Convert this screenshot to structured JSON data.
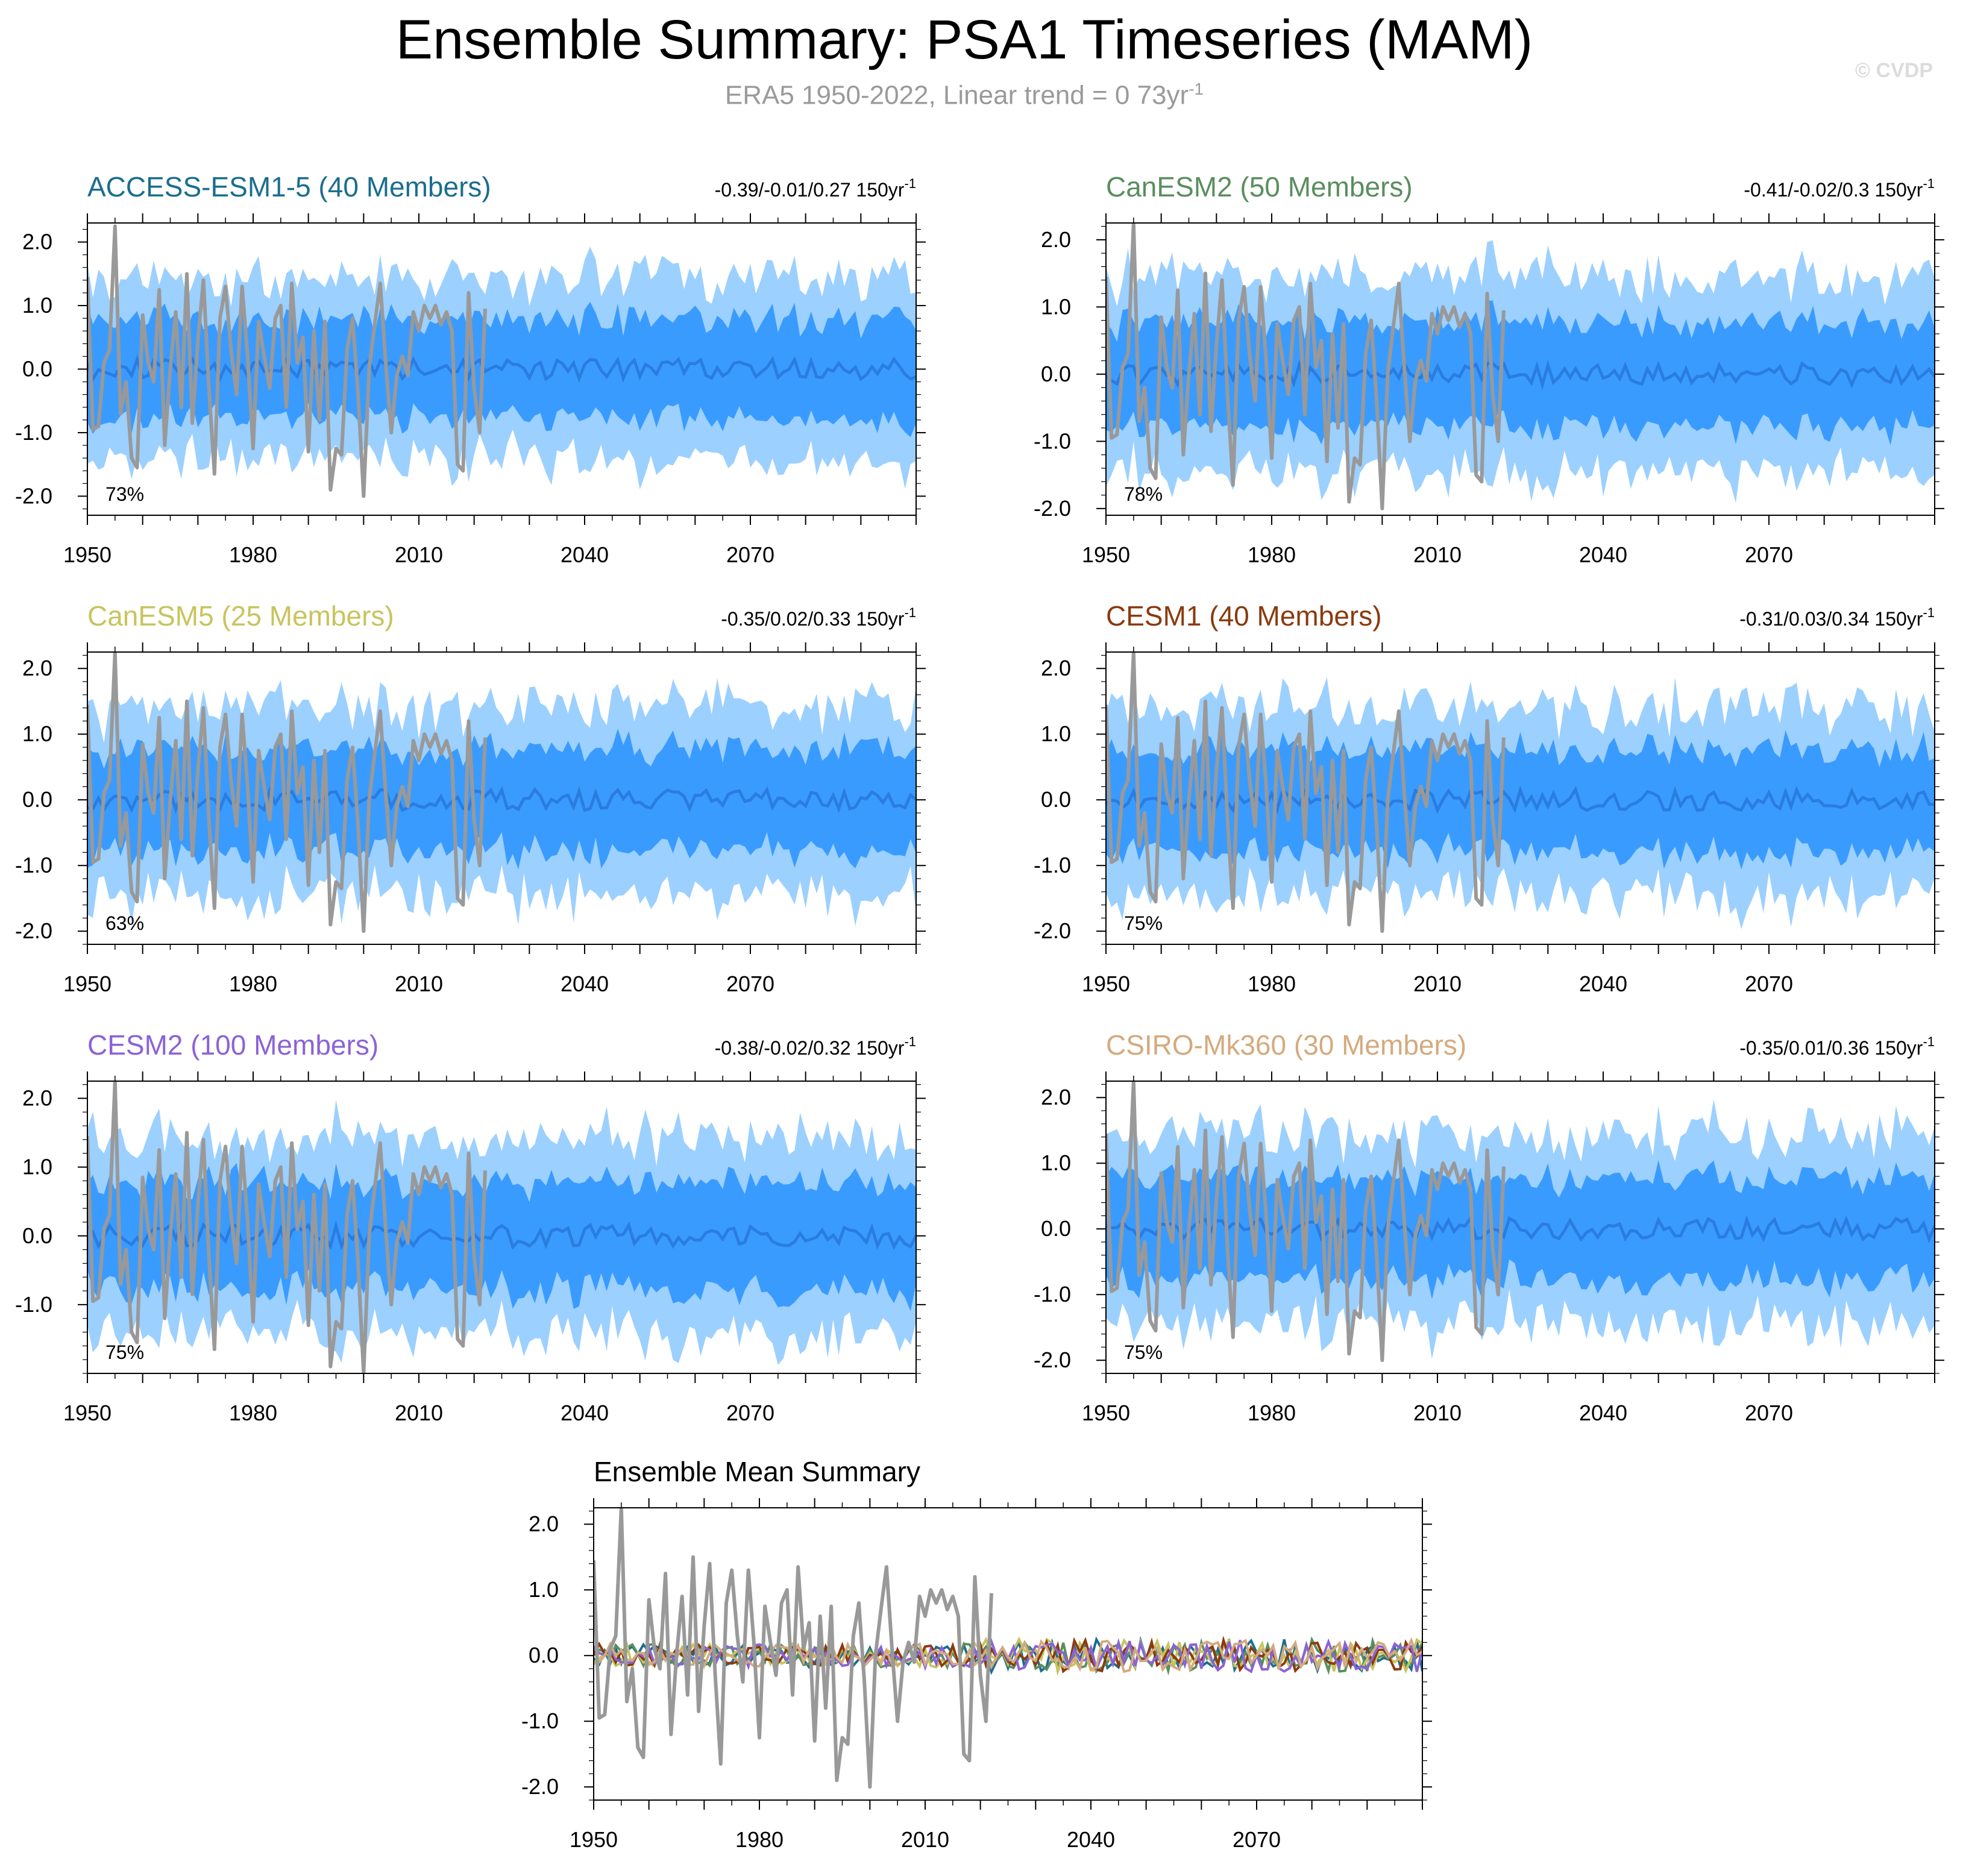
{
  "header": {
    "title": "Ensemble Summary: PSA1 Timeseries (MAM)",
    "subtitle_text": "ERA5 1950-2022, Linear trend = 0 73yr",
    "subtitle_sup": "-1",
    "watermark": "© CVDP"
  },
  "colors": {
    "outer_band": "#9cd0ff",
    "inner_band": "#3a9bff",
    "ensemble_mean": "#2a7de0",
    "observations": "#999999"
  },
  "chart_data": [
    {
      "type": "area",
      "title": "ACCESS-ESM1-5 (40 Members)",
      "title_color": "#1a6e8e",
      "trend": "-0.39/-0.01/0.27 150yr",
      "trend_sup": "-1",
      "pct": "73%",
      "xlim": [
        1950,
        2100
      ],
      "ylim": [
        -2.3,
        2.3
      ],
      "yticks": [
        "2.0",
        "1.0",
        "0.0",
        "-1.0",
        "-2.0"
      ],
      "xticks": [
        "1950",
        "1980",
        "2010",
        "2040",
        "2070"
      ],
      "seed": 11
    },
    {
      "type": "area",
      "title": "CanESM2 (50 Members)",
      "title_color": "#5a8e5e",
      "trend": "-0.41/-0.02/0.3 150yr",
      "trend_sup": "-1",
      "pct": "78%",
      "xlim": [
        1950,
        2100
      ],
      "ylim": [
        -2.1,
        2.25
      ],
      "yticks": [
        "2.0",
        "1.0",
        "0.0",
        "-1.0",
        "-2.0"
      ],
      "xticks": [
        "1950",
        "1980",
        "2010",
        "2040",
        "2070"
      ],
      "seed": 23
    },
    {
      "type": "area",
      "title": "CanESM5 (25 Members)",
      "title_color": "#c8c45e",
      "trend": "-0.35/0.02/0.33 150yr",
      "trend_sup": "-1",
      "pct": "63%",
      "xlim": [
        1950,
        2100
      ],
      "ylim": [
        -2.2,
        2.25
      ],
      "yticks": [
        "2.0",
        "1.0",
        "0.0",
        "-1.0",
        "-2.0"
      ],
      "xticks": [
        "1950",
        "1980",
        "2010",
        "2040",
        "2070"
      ],
      "seed": 37
    },
    {
      "type": "area",
      "title": "CESM1 (40 Members)",
      "title_color": "#8b3a0e",
      "trend": "-0.31/0.03/0.34 150yr",
      "trend_sup": "-1",
      "pct": "75%",
      "xlim": [
        1950,
        2100
      ],
      "ylim": [
        -2.2,
        2.25
      ],
      "yticks": [
        "2.0",
        "1.0",
        "0.0",
        "-1.0",
        "-2.0"
      ],
      "xticks": [
        "1950",
        "1980",
        "2010",
        "2040",
        "2070"
      ],
      "seed": 41
    },
    {
      "type": "area",
      "title": "CESM2 (100 Members)",
      "title_color": "#8b62d8",
      "trend": "-0.38/-0.02/0.32 150yr",
      "trend_sup": "-1",
      "pct": "75%",
      "xlim": [
        1950,
        2100
      ],
      "ylim": [
        -2.0,
        2.25
      ],
      "yticks": [
        "2.0",
        "1.0",
        "0.0",
        "-1.0"
      ],
      "xticks": [
        "1950",
        "1980",
        "2010",
        "2040",
        "2070"
      ],
      "seed": 53
    },
    {
      "type": "area",
      "title": "CSIRO-Mk360 (30 Members)",
      "title_color": "#d4aa7e",
      "trend": "-0.35/0.01/0.36 150yr",
      "trend_sup": "-1",
      "pct": "75%",
      "xlim": [
        1950,
        2100
      ],
      "ylim": [
        -2.2,
        2.25
      ],
      "yticks": [
        "2.0",
        "1.0",
        "0.0",
        "-1.0",
        "-2.0"
      ],
      "xticks": [
        "1950",
        "1980",
        "2010",
        "2040",
        "2070"
      ],
      "seed": 67
    },
    {
      "type": "line",
      "title": "Ensemble Mean Summary",
      "title_color": "#000000",
      "xlim": [
        1950,
        2100
      ],
      "ylim": [
        -2.2,
        2.25
      ],
      "yticks": [
        "2.0",
        "1.0",
        "0.0",
        "-1.0",
        "-2.0"
      ],
      "xticks": [
        "1950",
        "1980",
        "2010",
        "2040",
        "2070"
      ],
      "series": [
        {
          "name": "ACCESS-ESM1-5",
          "color": "#1a6e8e"
        },
        {
          "name": "CanESM2",
          "color": "#5a8e5e"
        },
        {
          "name": "CanESM5",
          "color": "#c8c45e"
        },
        {
          "name": "CESM1",
          "color": "#8b3a0e"
        },
        {
          "name": "CESM2",
          "color": "#8b62d8"
        },
        {
          "name": "CSIRO-Mk360",
          "color": "#d4aa7e"
        }
      ]
    }
  ],
  "observations": {
    "name": "ERA5",
    "start_year": 1950,
    "values": [
      1.45,
      -0.95,
      -0.9,
      0.1,
      0.3,
      2.25,
      -0.7,
      -0.2,
      -1.4,
      -1.55,
      0.85,
      0.1,
      -0.2,
      1.25,
      -1.2,
      0.0,
      0.9,
      -0.6,
      1.5,
      -0.85,
      0.45,
      1.4,
      -0.3,
      -1.65,
      0.8,
      1.3,
      0.3,
      -0.4,
      1.3,
      0.2,
      -1.25,
      0.75,
      0.2,
      -0.3,
      0.8,
      1.0,
      -0.6,
      1.35,
      0.1,
      0.5,
      -1.3,
      0.6,
      -0.8,
      0.75,
      -1.9,
      -1.25,
      -1.35,
      0.3,
      0.8,
      -0.4,
      -2.0,
      0.0,
      0.7,
      1.35,
      0.1,
      -1.0,
      -0.1,
      0.2,
      -0.1,
      0.9,
      0.6,
      1.0,
      0.8,
      1.0,
      0.7,
      0.9,
      0.6,
      -1.5,
      -1.6,
      1.2,
      -0.3,
      -1.0,
      0.95
    ]
  }
}
